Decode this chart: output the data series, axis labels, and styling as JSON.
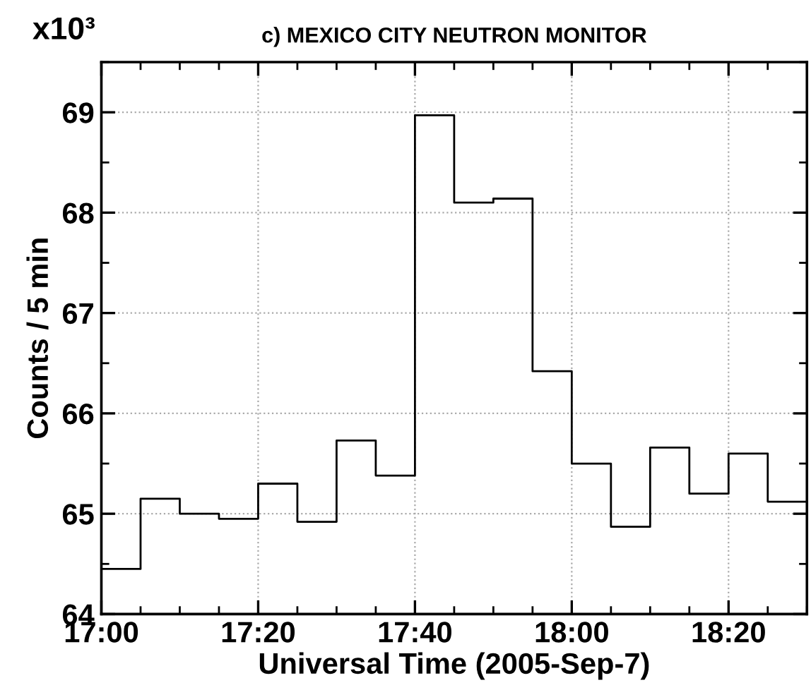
{
  "chart_data": {
    "type": "step",
    "title": "c) MEXICO CITY NEUTRON MONITOR",
    "xlabel": "Universal Time (2005-Sep-7)",
    "ylabel": "Counts / 5 min",
    "annotations": [
      "x10³"
    ],
    "x": [
      "2005-09-07T17:00",
      "2005-09-07T17:05",
      "2005-09-07T17:10",
      "2005-09-07T17:15",
      "2005-09-07T17:20",
      "2005-09-07T17:25",
      "2005-09-07T17:30",
      "2005-09-07T17:35",
      "2005-09-07T17:40",
      "2005-09-07T17:45",
      "2005-09-07T17:50",
      "2005-09-07T17:55",
      "2005-09-07T18:00",
      "2005-09-07T18:05",
      "2005-09-07T18:10",
      "2005-09-07T18:15",
      "2005-09-07T18:20",
      "2005-09-07T18:25",
      "2005-09-07T18:30"
    ],
    "series": [
      {
        "color": "#000000",
        "values": [
          64.45,
          65.15,
          65.0,
          64.95,
          65.3,
          64.92,
          65.73,
          65.38,
          68.97,
          68.1,
          68.14,
          66.42,
          65.5,
          64.87,
          65.66,
          65.2,
          65.6,
          65.12,
          65.12
        ]
      }
    ],
    "xlim": [
      "2005-09-07T17:00",
      "2005-09-07T18:30"
    ],
    "xticks": [
      {
        "value": "2005-09-07T17:00",
        "label": "17:00"
      },
      {
        "value": "2005-09-07T17:20",
        "label": "17:20"
      },
      {
        "value": "2005-09-07T17:40",
        "label": "17:40"
      },
      {
        "value": "2005-09-07T18:00",
        "label": "18:00"
      },
      {
        "value": "2005-09-07T18:20",
        "label": "18:20"
      }
    ],
    "ylim": [
      64,
      69.5
    ],
    "yticks": [
      64,
      65,
      66,
      67,
      68,
      69
    ],
    "grid": true,
    "line_style": "solid",
    "marker": "none"
  }
}
